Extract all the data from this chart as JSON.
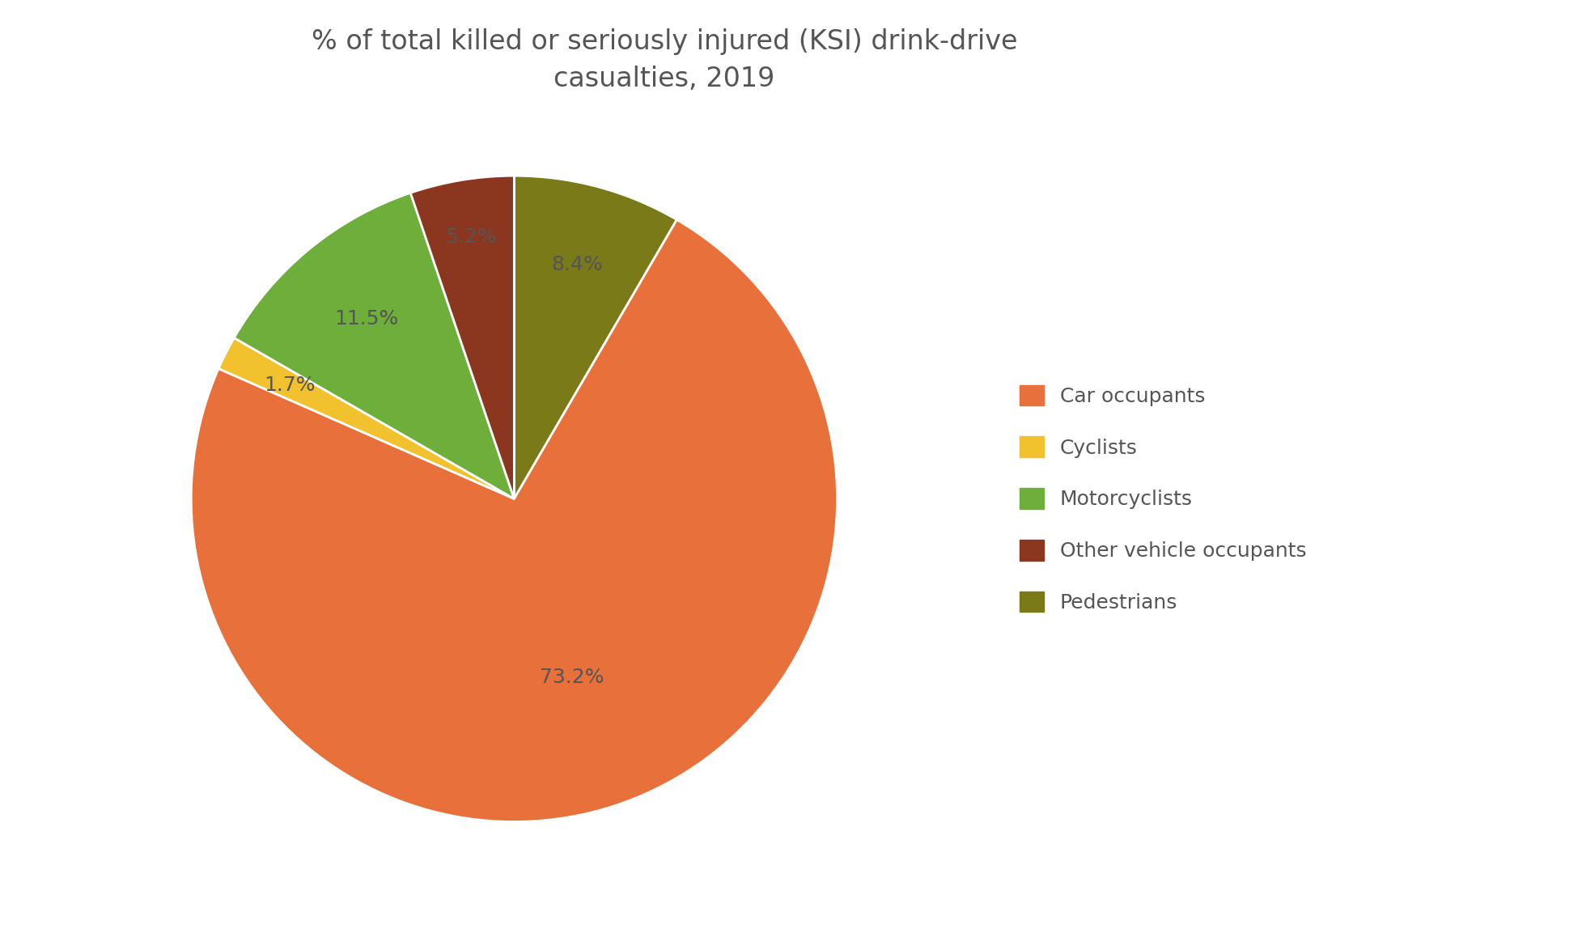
{
  "title": "% of total killed or seriously injured (KSI) drink-drive\ncasualties, 2019",
  "labels": [
    "Car occupants",
    "Cyclists",
    "Motorcyclists",
    "Other vehicle occupants",
    "Pedestrians"
  ],
  "values": [
    73.2,
    1.7,
    11.5,
    5.2,
    8.4
  ],
  "colors": [
    "#E8703A",
    "#F2C12E",
    "#6DAF3A",
    "#8B3720",
    "#7A7A18"
  ],
  "title_fontsize": 24,
  "label_fontsize": 18,
  "legend_fontsize": 18,
  "background_color": "#ffffff",
  "text_color": "#555555",
  "plot_order_values": [
    8.4,
    73.2,
    1.7,
    11.5,
    5.2
  ],
  "plot_order_colors": [
    "#7A7A18",
    "#E8703A",
    "#F2C12E",
    "#6DAF3A",
    "#8B3720"
  ],
  "plot_order_labels": [
    "8.4%",
    "73.2%",
    "1.7%",
    "11.5%",
    "5.2%"
  ],
  "label_radii": [
    0.75,
    0.58,
    0.78,
    0.72,
    0.82
  ]
}
